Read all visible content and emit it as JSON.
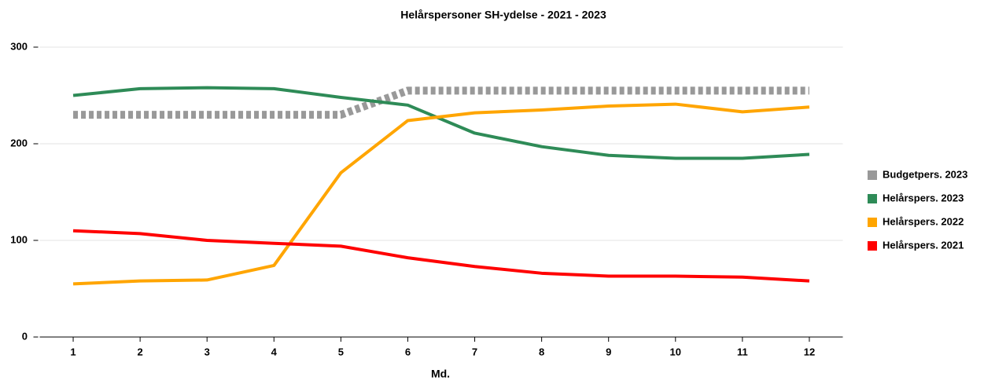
{
  "chart_data": {
    "type": "line",
    "title": "Helårspersoner SH-ydelse - 2021 - 2023",
    "xlabel": "Md.",
    "x": [
      1,
      2,
      3,
      4,
      5,
      6,
      7,
      8,
      9,
      10,
      11,
      12
    ],
    "xlim": [
      0.5,
      12.5
    ],
    "xticks": [
      1,
      2,
      3,
      4,
      5,
      6,
      7,
      8,
      9,
      10,
      11,
      12
    ],
    "ylim": [
      0,
      300
    ],
    "yticks": [
      0,
      100,
      200,
      300
    ],
    "grid": true,
    "legend": "right",
    "series": [
      {
        "name": "Budgetpers. 2023",
        "color": "#999999",
        "dashed": true,
        "values": [
          230,
          230,
          230,
          230,
          230,
          255,
          255,
          255,
          255,
          255,
          255,
          255
        ]
      },
      {
        "name": "Helårspers. 2023",
        "color": "#2e8b57",
        "values": [
          250,
          257,
          258,
          257,
          248,
          240,
          211,
          197,
          188,
          185,
          185,
          189
        ]
      },
      {
        "name": "Helårspers. 2022",
        "color": "#ffa500",
        "values": [
          55,
          58,
          59,
          74,
          170,
          224,
          232,
          235,
          239,
          241,
          233,
          238
        ]
      },
      {
        "name": "Helårspers. 2021",
        "color": "#ff0000",
        "values": [
          110,
          107,
          100,
          97,
          94,
          82,
          73,
          66,
          63,
          63,
          62,
          58
        ]
      }
    ]
  }
}
